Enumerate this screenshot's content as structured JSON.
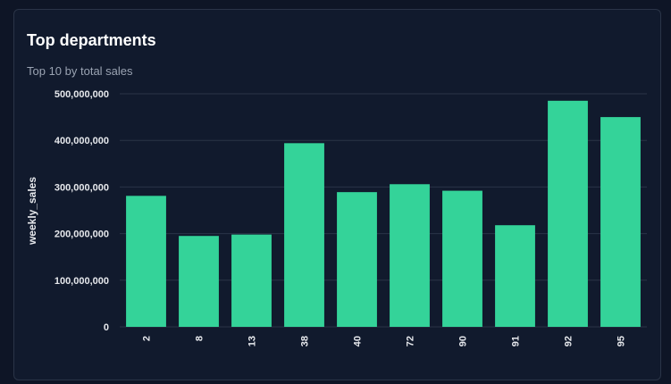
{
  "card": {
    "title": "Top departments",
    "subtitle": "Top 10 by total sales"
  },
  "chart_data": {
    "type": "bar",
    "title": "Top departments",
    "subtitle": "Top 10 by total sales",
    "xlabel": "",
    "ylabel": "weekly_sales",
    "categories": [
      "2",
      "8",
      "13",
      "38",
      "40",
      "72",
      "90",
      "91",
      "92",
      "95"
    ],
    "values": [
      281000000,
      195000000,
      198000000,
      394000000,
      289000000,
      306000000,
      292000000,
      218000000,
      485000000,
      450000000
    ],
    "ylim": [
      0,
      500000000
    ],
    "yticks": [
      0,
      100000000,
      200000000,
      300000000,
      400000000,
      500000000
    ],
    "ytick_labels": [
      "0",
      "100,000,000",
      "200,000,000",
      "300,000,000",
      "400,000,000",
      "500,000,000"
    ],
    "grid": true,
    "legend": "none",
    "bar_color": "#34d399",
    "grid_color": "#2a3447"
  }
}
